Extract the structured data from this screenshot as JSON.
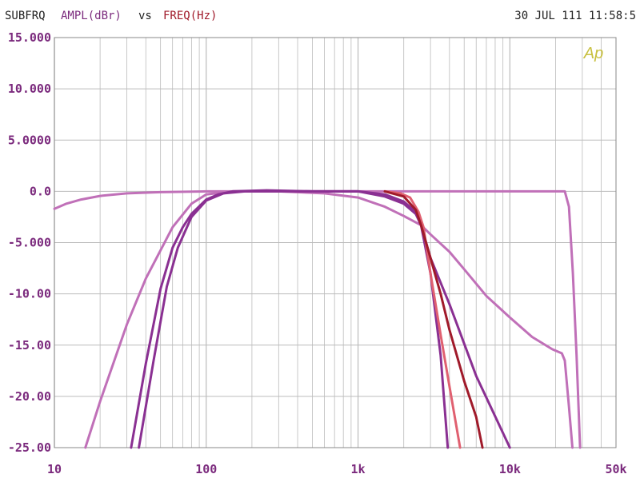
{
  "header": {
    "trace": "SUBFRQ",
    "yname": "AMPL(dBr)",
    "vs": "vs",
    "xname": "FREQ(Hz)",
    "timestamp": "30 JUL 111 11:58:5",
    "logo": "Ap"
  },
  "colors": {
    "header_trace": "#222222",
    "header_y": "#7b2a7d",
    "header_vs": "#222222",
    "header_x": "#a01a2a",
    "axis_text": "#7b2a7d",
    "grid": "#bbbbbb",
    "logo": "#c8c040"
  },
  "chart_data": {
    "type": "line",
    "xscale": "log",
    "xlim": [
      10,
      50000
    ],
    "ylim": [
      -25,
      15
    ],
    "grid": true,
    "xticks": [
      {
        "value": 10,
        "label": "10"
      },
      {
        "value": 100,
        "label": "100"
      },
      {
        "value": 1000,
        "label": "1k"
      },
      {
        "value": 10000,
        "label": "10k"
      },
      {
        "value": 50000,
        "label": "50k"
      }
    ],
    "yticks": [
      {
        "value": 15,
        "label": "15.000"
      },
      {
        "value": 10,
        "label": "10.000"
      },
      {
        "value": 5,
        "label": "5.0000"
      },
      {
        "value": 0,
        "label": "0.0"
      },
      {
        "value": -5,
        "label": "-5.000"
      },
      {
        "value": -10,
        "label": "-10.00"
      },
      {
        "value": -15,
        "label": "-15.00"
      },
      {
        "value": -20,
        "label": "-20.00"
      },
      {
        "value": -25,
        "label": "-25.00"
      }
    ],
    "series": [
      {
        "color": "#c070b8",
        "points": [
          [
            10,
            -1.7
          ],
          [
            12,
            -1.2
          ],
          [
            15,
            -0.8
          ],
          [
            20,
            -0.45
          ],
          [
            30,
            -0.2
          ],
          [
            50,
            -0.08
          ],
          [
            100,
            0
          ],
          [
            1000,
            0
          ],
          [
            5000,
            0
          ],
          [
            15000,
            0
          ],
          [
            23000,
            0
          ],
          [
            24500,
            -1.5
          ],
          [
            26000,
            -8
          ],
          [
            27500,
            -16
          ],
          [
            29000,
            -25
          ]
        ]
      },
      {
        "color": "#c070b8",
        "points": [
          [
            16,
            -25
          ],
          [
            20,
            -20.5
          ],
          [
            30,
            -13
          ],
          [
            40,
            -8.5
          ],
          [
            60,
            -3.5
          ],
          [
            80,
            -1.2
          ],
          [
            100,
            -0.3
          ],
          [
            150,
            0
          ],
          [
            300,
            0
          ],
          [
            600,
            -0.2
          ],
          [
            1000,
            -0.6
          ],
          [
            1500,
            -1.5
          ],
          [
            2000,
            -2.4
          ],
          [
            2600,
            -3.3
          ],
          [
            3000,
            -4.2
          ],
          [
            4000,
            -5.9
          ],
          [
            5000,
            -7.6
          ],
          [
            7000,
            -10.2
          ],
          [
            10000,
            -12.3
          ],
          [
            14000,
            -14.2
          ],
          [
            19000,
            -15.4
          ],
          [
            22000,
            -15.8
          ],
          [
            23000,
            -16.5
          ],
          [
            24500,
            -21
          ],
          [
            25800,
            -25
          ]
        ]
      },
      {
        "color": "#8a3092",
        "points": [
          [
            32,
            -25
          ],
          [
            40,
            -16.8
          ],
          [
            50,
            -9.5
          ],
          [
            60,
            -5.5
          ],
          [
            70,
            -3.5
          ],
          [
            80,
            -2.2
          ],
          [
            100,
            -0.8
          ],
          [
            120,
            -0.3
          ],
          [
            150,
            0
          ],
          [
            250,
            0.1
          ],
          [
            500,
            0
          ],
          [
            1000,
            0
          ],
          [
            1500,
            -0.3
          ],
          [
            2000,
            -1.0
          ],
          [
            2400,
            -2.0
          ],
          [
            2600,
            -3.3
          ],
          [
            3000,
            -8
          ],
          [
            3500,
            -16
          ],
          [
            3900,
            -25
          ]
        ]
      },
      {
        "color": "#8a3092",
        "points": [
          [
            36,
            -25
          ],
          [
            45,
            -16.5
          ],
          [
            55,
            -9.3
          ],
          [
            65,
            -5.5
          ],
          [
            80,
            -2.5
          ],
          [
            100,
            -0.9
          ],
          [
            130,
            -0.2
          ],
          [
            180,
            0
          ],
          [
            500,
            0
          ],
          [
            1000,
            0
          ],
          [
            1500,
            -0.5
          ],
          [
            2000,
            -1.2
          ],
          [
            2400,
            -2.2
          ],
          [
            2600,
            -3.3
          ],
          [
            3000,
            -6.5
          ],
          [
            4000,
            -11
          ],
          [
            6000,
            -18
          ],
          [
            10000,
            -25
          ]
        ]
      },
      {
        "color": "#e06070",
        "points": [
          [
            1500,
            0
          ],
          [
            1900,
            -0.2
          ],
          [
            2200,
            -0.6
          ],
          [
            2500,
            -2.0
          ],
          [
            2700,
            -3.5
          ],
          [
            3000,
            -8
          ],
          [
            3500,
            -14
          ],
          [
            4000,
            -19
          ],
          [
            4700,
            -25
          ]
        ]
      },
      {
        "color": "#a01a2a",
        "points": [
          [
            1500,
            0
          ],
          [
            2000,
            -0.5
          ],
          [
            2400,
            -1.8
          ],
          [
            2600,
            -3.3
          ],
          [
            3000,
            -6.5
          ],
          [
            3500,
            -10
          ],
          [
            4000,
            -13.5
          ],
          [
            5000,
            -18.5
          ],
          [
            6000,
            -22
          ],
          [
            6600,
            -25
          ]
        ]
      }
    ]
  }
}
